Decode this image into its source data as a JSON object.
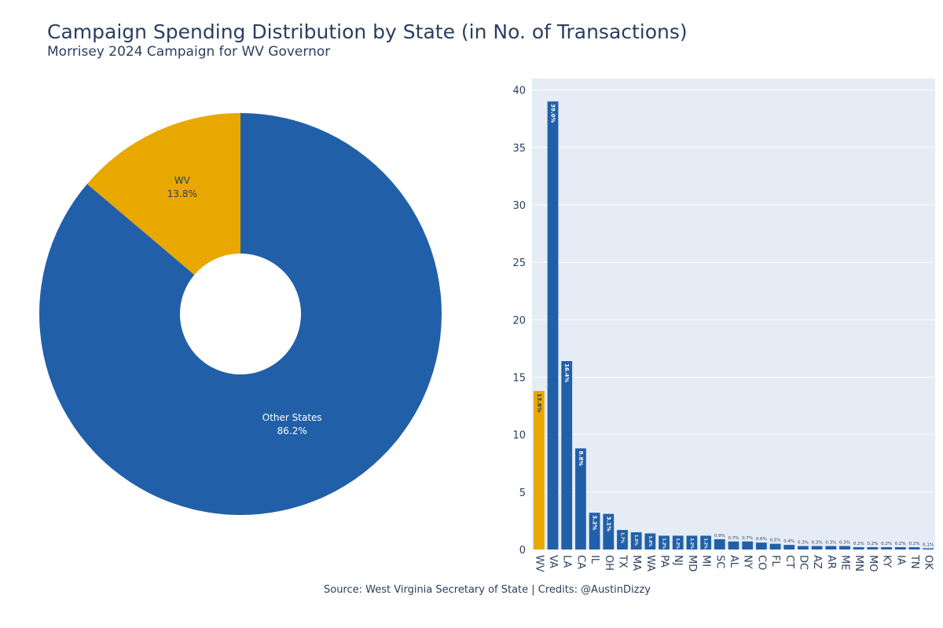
{
  "header": {
    "title": "Campaign Spending Distribution by State (in No. of Transactions)",
    "subtitle": "Morrisey 2024 Campaign for WV Governor"
  },
  "footer": {
    "source": "Source: West Virginia Secretary of State | Credits: @AustinDizzy"
  },
  "colors": {
    "wv": "#E8A800",
    "other": "#2160A8",
    "plot_bg": "#E5ECF6",
    "grid": "#ffffff",
    "text": "#2a3f5f"
  },
  "chart_data": [
    {
      "type": "pie",
      "hole": true,
      "slices": [
        {
          "label": "WV",
          "value": 13.8,
          "text": "13.8%"
        },
        {
          "label": "Other States",
          "value": 86.2,
          "text": "86.2%"
        }
      ]
    },
    {
      "type": "bar",
      "categories": [
        "WV",
        "VA",
        "LA",
        "CA",
        "IL",
        "OH",
        "TX",
        "MA",
        "WA",
        "PA",
        "NJ",
        "MD",
        "MI",
        "SC",
        "AL",
        "NY",
        "CO",
        "FL",
        "CT",
        "DC",
        "AZ",
        "AR",
        "ME",
        "MN",
        "MO",
        "KY",
        "IA",
        "TN",
        "OK"
      ],
      "values": [
        13.8,
        39.0,
        16.4,
        8.8,
        3.2,
        3.1,
        1.7,
        1.5,
        1.4,
        1.2,
        1.2,
        1.2,
        1.2,
        0.9,
        0.7,
        0.7,
        0.6,
        0.5,
        0.4,
        0.3,
        0.3,
        0.3,
        0.3,
        0.2,
        0.2,
        0.2,
        0.2,
        0.2,
        0.1
      ],
      "labels": [
        "13.8%",
        "39.0%",
        "16.4%",
        "8.8%",
        "3.2%",
        "3.1%",
        "1.7%",
        "1.5%",
        "1.4%",
        "1.2%",
        "1.2%",
        "1.2%",
        "1.2%",
        "0.9%",
        "0.7%",
        "0.7%",
        "0.6%",
        "0.5%",
        "0.4%",
        "0.3%",
        "0.3%",
        "0.3%",
        "0.3%",
        "0.2%",
        "0.2%",
        "0.2%",
        "0.2%",
        "0.2%",
        "0.1%"
      ],
      "highlight": "WV",
      "ylim": [
        0,
        41
      ],
      "yticks": [
        0,
        5,
        10,
        15,
        20,
        25,
        30,
        35,
        40
      ],
      "grid": true,
      "xlabel": "",
      "ylabel": ""
    }
  ]
}
